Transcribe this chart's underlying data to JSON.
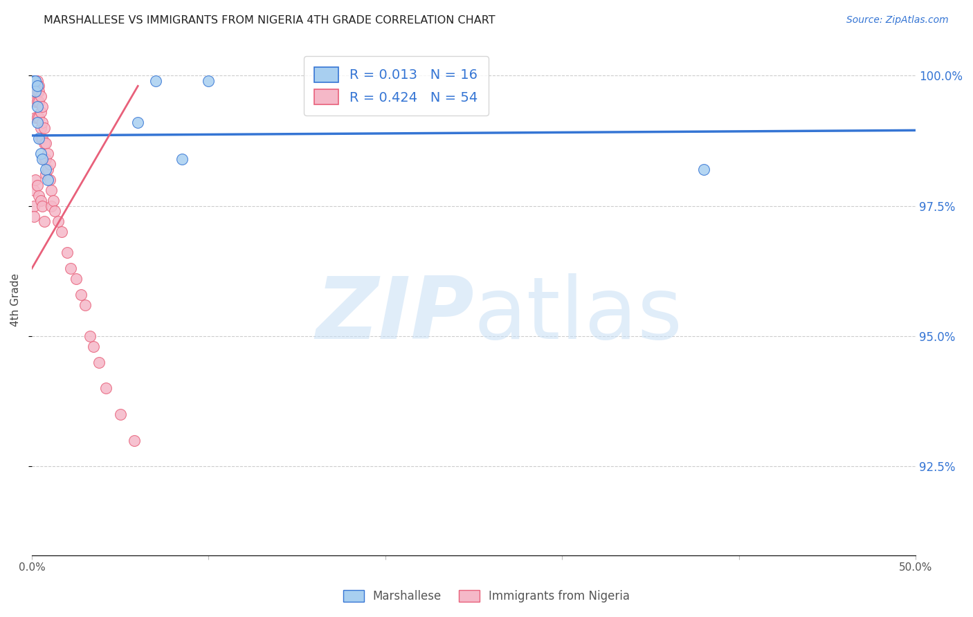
{
  "title": "MARSHALLESE VS IMMIGRANTS FROM NIGERIA 4TH GRADE CORRELATION CHART",
  "source": "Source: ZipAtlas.com",
  "ylabel": "4th Grade",
  "xlim": [
    0.0,
    0.5
  ],
  "ylim": [
    0.908,
    1.006
  ],
  "xticks": [
    0.0,
    0.1,
    0.2,
    0.3,
    0.4,
    0.5
  ],
  "xticklabels": [
    "0.0%",
    "",
    "",
    "",
    "",
    "50.0%"
  ],
  "yticks": [
    0.925,
    0.95,
    0.975,
    1.0
  ],
  "yticklabels": [
    "92.5%",
    "95.0%",
    "97.5%",
    "100.0%"
  ],
  "legend_label_1": "R = 0.013   N = 16",
  "legend_label_2": "R = 0.424   N = 54",
  "legend_color_1": "#a8cff0",
  "legend_color_2": "#f5b8c8",
  "series1_color": "#a8cff0",
  "series2_color": "#f5b8c8",
  "trendline1_color": "#3575d4",
  "trendline2_color": "#e8607a",
  "watermark_zip": "ZIP",
  "watermark_atlas": "atlas",
  "watermark_color_zip": "#c8dff5",
  "watermark_color_atlas": "#c8dff5",
  "background_color": "#ffffff",
  "marshallese_x": [
    0.001,
    0.002,
    0.002,
    0.003,
    0.003,
    0.003,
    0.004,
    0.005,
    0.006,
    0.008,
    0.009,
    0.06,
    0.07,
    0.085,
    0.1,
    0.38
  ],
  "marshallese_y": [
    0.999,
    0.999,
    0.997,
    0.998,
    0.994,
    0.991,
    0.988,
    0.985,
    0.984,
    0.982,
    0.98,
    0.991,
    0.999,
    0.984,
    0.999,
    0.982
  ],
  "nigeria_x": [
    0.001,
    0.001,
    0.001,
    0.002,
    0.002,
    0.002,
    0.002,
    0.003,
    0.003,
    0.003,
    0.003,
    0.003,
    0.004,
    0.004,
    0.004,
    0.004,
    0.004,
    0.005,
    0.005,
    0.005,
    0.005,
    0.005,
    0.006,
    0.006,
    0.006,
    0.006,
    0.007,
    0.007,
    0.007,
    0.007,
    0.008,
    0.008,
    0.008,
    0.009,
    0.009,
    0.01,
    0.01,
    0.011,
    0.011,
    0.012,
    0.013,
    0.015,
    0.017,
    0.02,
    0.022,
    0.025,
    0.028,
    0.03,
    0.033,
    0.035,
    0.038,
    0.042,
    0.05,
    0.058
  ],
  "nigeria_y": [
    0.978,
    0.975,
    0.973,
    0.997,
    0.995,
    0.992,
    0.98,
    0.999,
    0.997,
    0.995,
    0.992,
    0.979,
    0.998,
    0.997,
    0.995,
    0.992,
    0.977,
    0.996,
    0.993,
    0.99,
    0.988,
    0.976,
    0.994,
    0.991,
    0.988,
    0.975,
    0.99,
    0.987,
    0.984,
    0.972,
    0.987,
    0.984,
    0.981,
    0.985,
    0.982,
    0.983,
    0.98,
    0.978,
    0.975,
    0.976,
    0.974,
    0.972,
    0.97,
    0.966,
    0.963,
    0.961,
    0.958,
    0.956,
    0.95,
    0.948,
    0.945,
    0.94,
    0.935,
    0.93
  ],
  "trendline1_x": [
    0.0,
    0.5
  ],
  "trendline1_y": [
    0.9885,
    0.9895
  ],
  "trendline2_x": [
    0.0,
    0.06
  ],
  "trendline2_y": [
    0.963,
    0.998
  ]
}
